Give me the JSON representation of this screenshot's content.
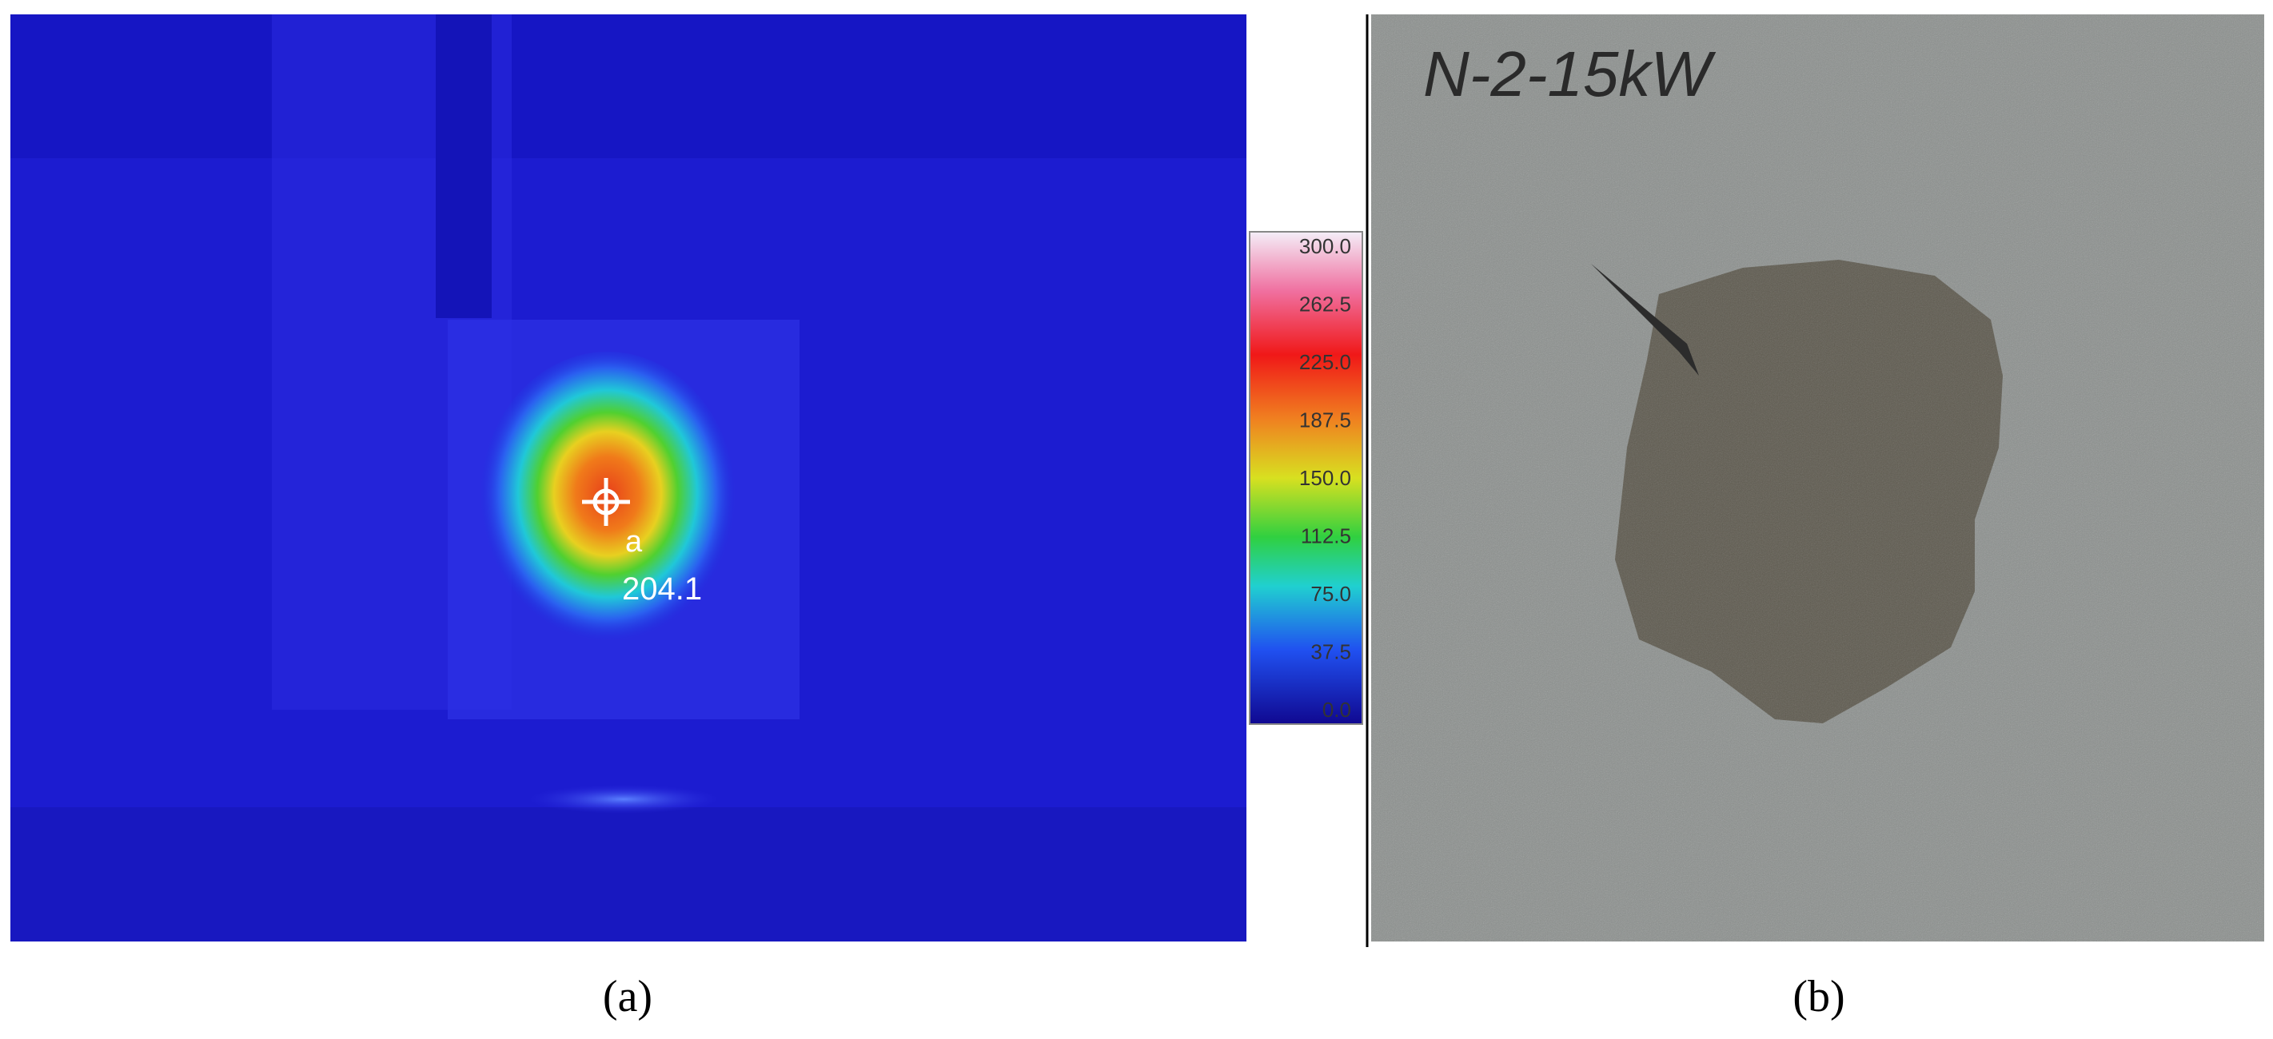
{
  "panels": [
    {
      "label": "(a)",
      "colorbar": {
        "ticks": [
          "300.0",
          "262.5",
          "225.0",
          "187.5",
          "150.0",
          "112.5",
          "75.0",
          "37.5",
          "0.0"
        ]
      },
      "marker": {
        "name": "a",
        "reading": "204.1"
      }
    },
    {
      "label": "(b)",
      "handwriting": "N-2-15kW"
    }
  ]
}
